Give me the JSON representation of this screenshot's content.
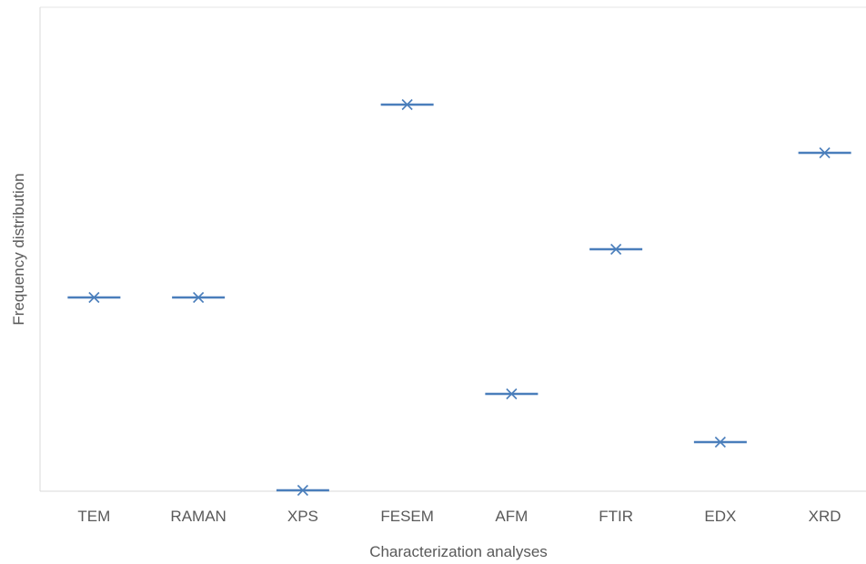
{
  "chart_data": {
    "type": "scatter",
    "marker": "x-with-dash",
    "categories": [
      "TEM",
      "RAMAN",
      "XPS",
      "FESEM",
      "AFM",
      "FTIR",
      "EDX",
      "XRD"
    ],
    "series": [
      {
        "values": [
          5,
          5,
          1,
          9,
          3,
          6,
          2,
          8
        ]
      }
    ],
    "xlabel": "Characterization analyses",
    "ylabel": "Frequency distribution",
    "ylim": [
      0,
      10
    ],
    "y_tick_labels_shown": false,
    "grid": false,
    "legend": "none",
    "colors": {
      "series": "#4a7ebb",
      "axis": "#d9d9d9",
      "text": "#595959"
    }
  }
}
